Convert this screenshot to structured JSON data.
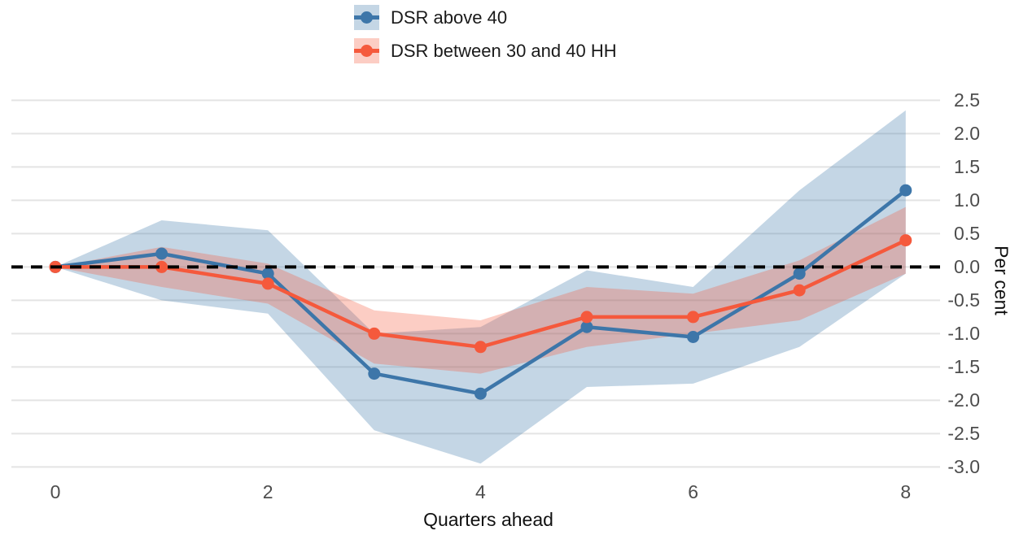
{
  "chart_data": {
    "type": "line",
    "title": "",
    "xlabel": "Quarters ahead",
    "ylabel": "Per cent",
    "grid": "horizontal-only",
    "legend_position": "top-center",
    "background": "#ffffff",
    "gridline_color": "#e4e4e4",
    "tick_text_color": "#4d4d4d",
    "axis_title_color": "#111111",
    "zero_line": {
      "y": 0.0,
      "style": "dashed",
      "color": "#000000"
    },
    "xlim": [
      -0.45,
      8.32
    ],
    "ylim": [
      -3.0,
      2.5
    ],
    "x": [
      0,
      1,
      2,
      3,
      4,
      5,
      6,
      7,
      8
    ],
    "x_ticks": [
      {
        "value": 0,
        "label": "0"
      },
      {
        "value": 2,
        "label": "2"
      },
      {
        "value": 4,
        "label": "4"
      },
      {
        "value": 6,
        "label": "6"
      },
      {
        "value": 8,
        "label": "8"
      }
    ],
    "y_ticks": [
      {
        "value": 2.5,
        "label": "2.5"
      },
      {
        "value": 2.0,
        "label": "2.0"
      },
      {
        "value": 1.5,
        "label": "1.5"
      },
      {
        "value": 1.0,
        "label": "1.0"
      },
      {
        "value": 0.5,
        "label": "0.5"
      },
      {
        "value": 0.0,
        "label": "0.0"
      },
      {
        "value": -0.5,
        "label": "-0.5"
      },
      {
        "value": -1.0,
        "label": "-1.0"
      },
      {
        "value": -1.5,
        "label": "-1.5"
      },
      {
        "value": -2.0,
        "label": "-2.0"
      },
      {
        "value": -2.5,
        "label": "-2.5"
      },
      {
        "value": -3.0,
        "label": "-3.0"
      }
    ],
    "series": [
      {
        "name": "DSR above 40",
        "color": "#3d76a9",
        "band_fill_opacity": 0.3,
        "values": [
          0.0,
          0.2,
          -0.1,
          -1.6,
          -1.9,
          -0.9,
          -1.05,
          -0.1,
          1.15
        ],
        "band_lower": [
          0.0,
          -0.5,
          -0.7,
          -2.45,
          -2.95,
          -1.8,
          -1.75,
          -1.2,
          -0.1
        ],
        "band_upper": [
          0.0,
          0.7,
          0.55,
          -1.0,
          -0.9,
          -0.05,
          -0.3,
          1.15,
          2.35
        ]
      },
      {
        "name": "DSR between 30 and 40 HH",
        "color": "#f5593c",
        "band_fill_opacity": 0.3,
        "values": [
          0.0,
          0.0,
          -0.25,
          -1.0,
          -1.2,
          -0.75,
          -0.75,
          -0.35,
          0.4
        ],
        "band_lower": [
          0.0,
          -0.3,
          -0.55,
          -1.45,
          -1.6,
          -1.2,
          -1.0,
          -0.8,
          -0.1
        ],
        "band_upper": [
          0.0,
          0.3,
          0.05,
          -0.65,
          -0.8,
          -0.3,
          -0.4,
          0.1,
          0.9
        ]
      }
    ]
  }
}
